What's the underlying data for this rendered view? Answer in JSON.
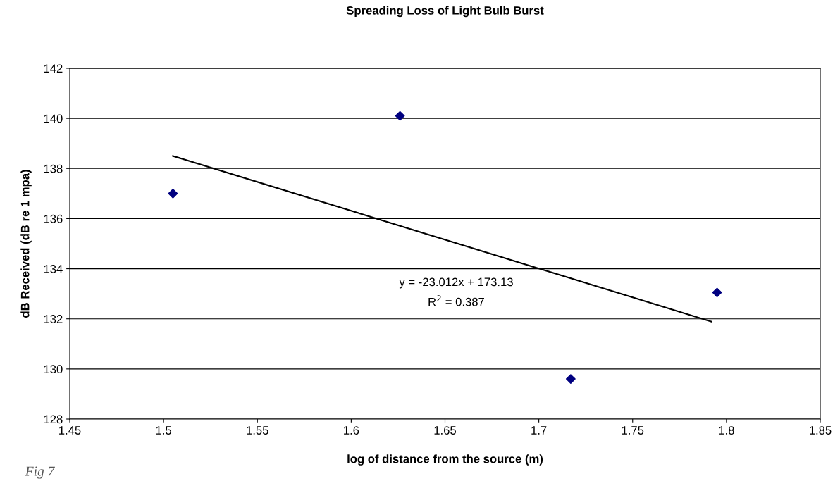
{
  "chart_data": {
    "type": "scatter",
    "title": "Spreading Loss of Light Bulb Burst",
    "xlabel": "log of distance from the source (m)",
    "ylabel": "dB Received (dB re 1 mpa)",
    "series": [
      {
        "color": "#000080",
        "marker": "diamond",
        "x": [
          1.505,
          1.626,
          1.717,
          1.795
        ],
        "values": [
          137.0,
          140.1,
          129.6,
          133.05
        ]
      },
      {
        "type": "line",
        "color": "#000000",
        "marker": "none",
        "line_style": "solid",
        "x": [
          1.505,
          1.792
        ],
        "values": [
          138.5,
          131.89
        ]
      }
    ],
    "annotations": [
      "y = -23.012x + 173.13",
      "R$^{2}$ = 0.387",
      "Fig 7"
    ],
    "xlim": [
      1.45,
      1.85
    ],
    "xticks": [
      1.45,
      1.5,
      1.55,
      1.6,
      1.65,
      1.7,
      1.75,
      1.8,
      1.85
    ],
    "ylim": [
      128,
      142
    ],
    "yticks": [
      128,
      130,
      132,
      134,
      136,
      138,
      140,
      142
    ],
    "grid": "y",
    "legend": false
  }
}
